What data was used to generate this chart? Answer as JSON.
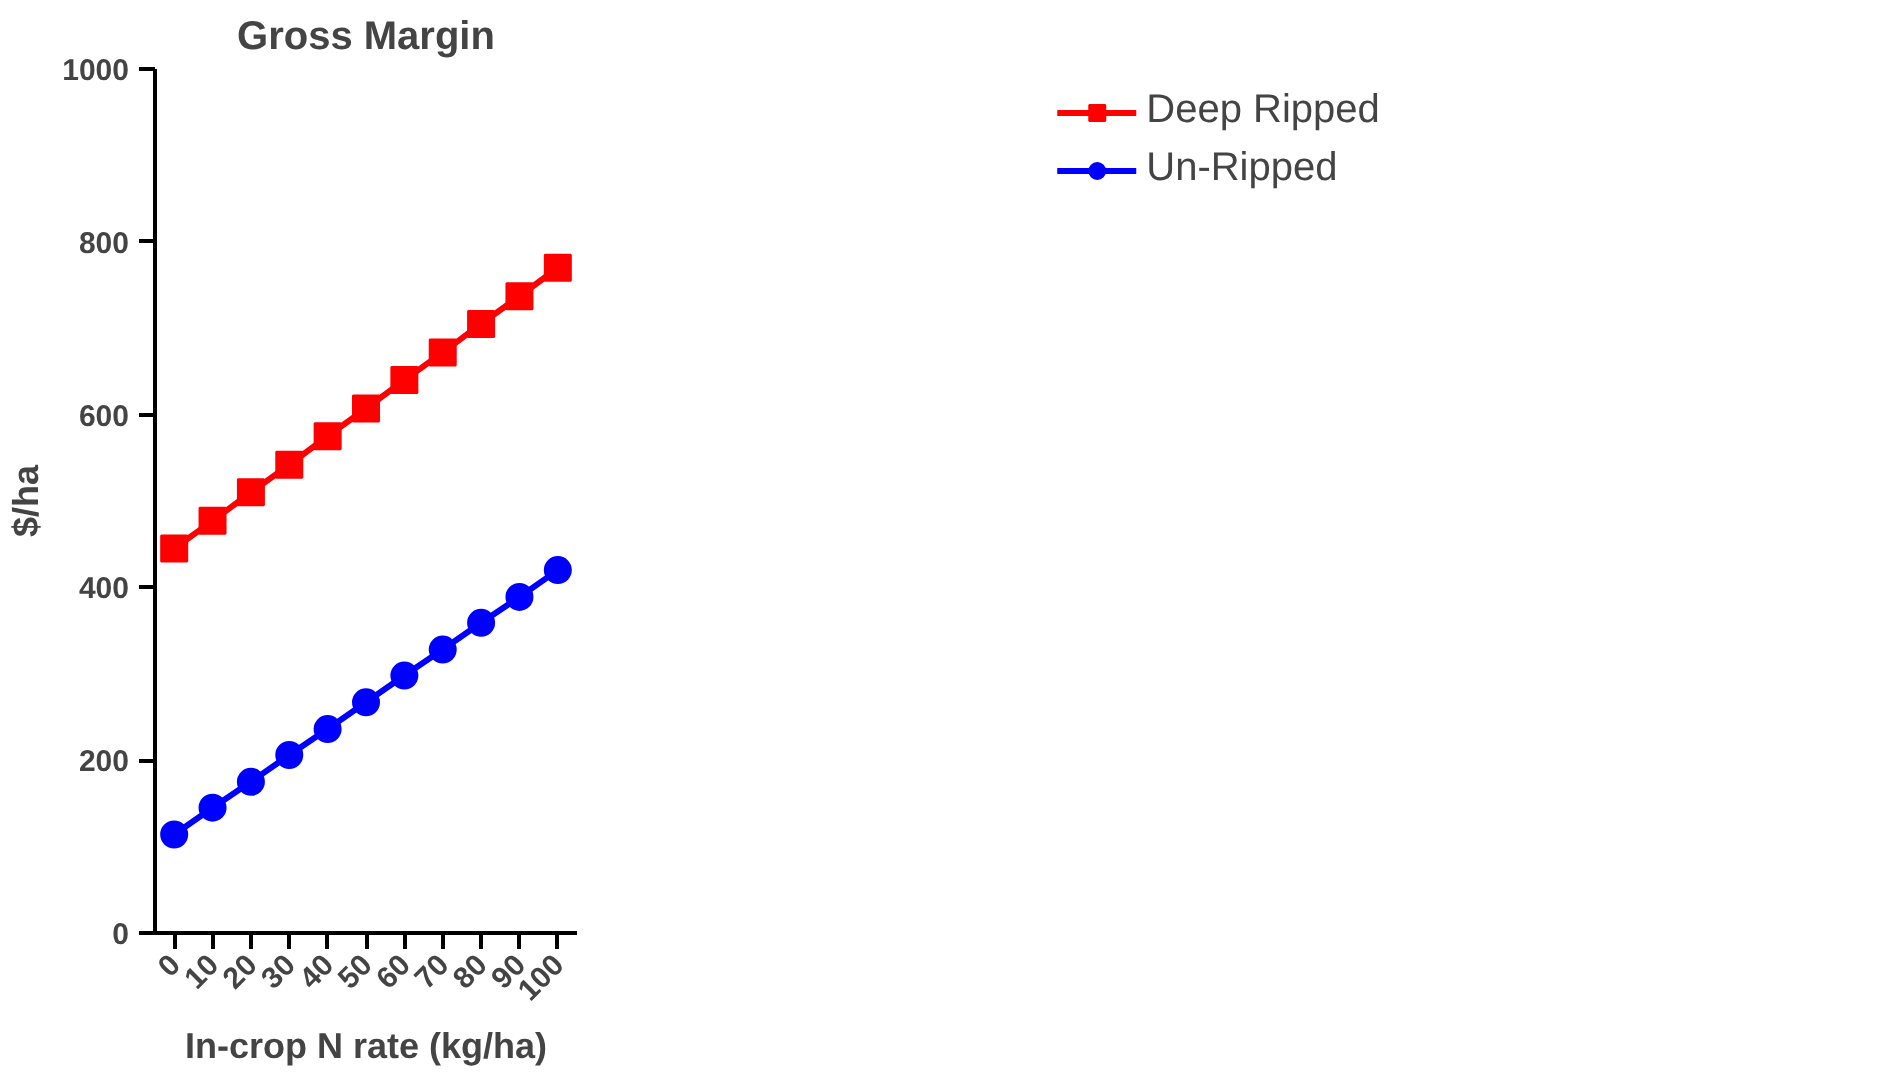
{
  "chart_data": {
    "type": "line",
    "title": "Gross Margin",
    "xlabel": "In-crop N rate (kg/ha)",
    "ylabel": "$/ha",
    "x": [
      0,
      10,
      20,
      30,
      40,
      50,
      60,
      70,
      80,
      90,
      100
    ],
    "series": [
      {
        "name": "Deep Ripped",
        "color": "#ff0000",
        "marker": "square",
        "values": [
          445,
          477,
          510,
          542,
          575,
          607,
          640,
          672,
          705,
          737,
          770
        ]
      },
      {
        "name": "Un-Ripped",
        "color": "#0000ff",
        "marker": "circle",
        "values": [
          114,
          145,
          175,
          206,
          236,
          267,
          298,
          328,
          359,
          389,
          420
        ]
      }
    ],
    "xlim": [
      -5,
      105
    ],
    "xticks": [
      0,
      10,
      20,
      30,
      40,
      50,
      60,
      70,
      80,
      90,
      100
    ],
    "ylim": [
      0,
      1000
    ],
    "yticks": [
      0,
      200,
      400,
      600,
      800,
      1000
    ],
    "grid": false,
    "legend": "right",
    "line_style": "solid"
  }
}
